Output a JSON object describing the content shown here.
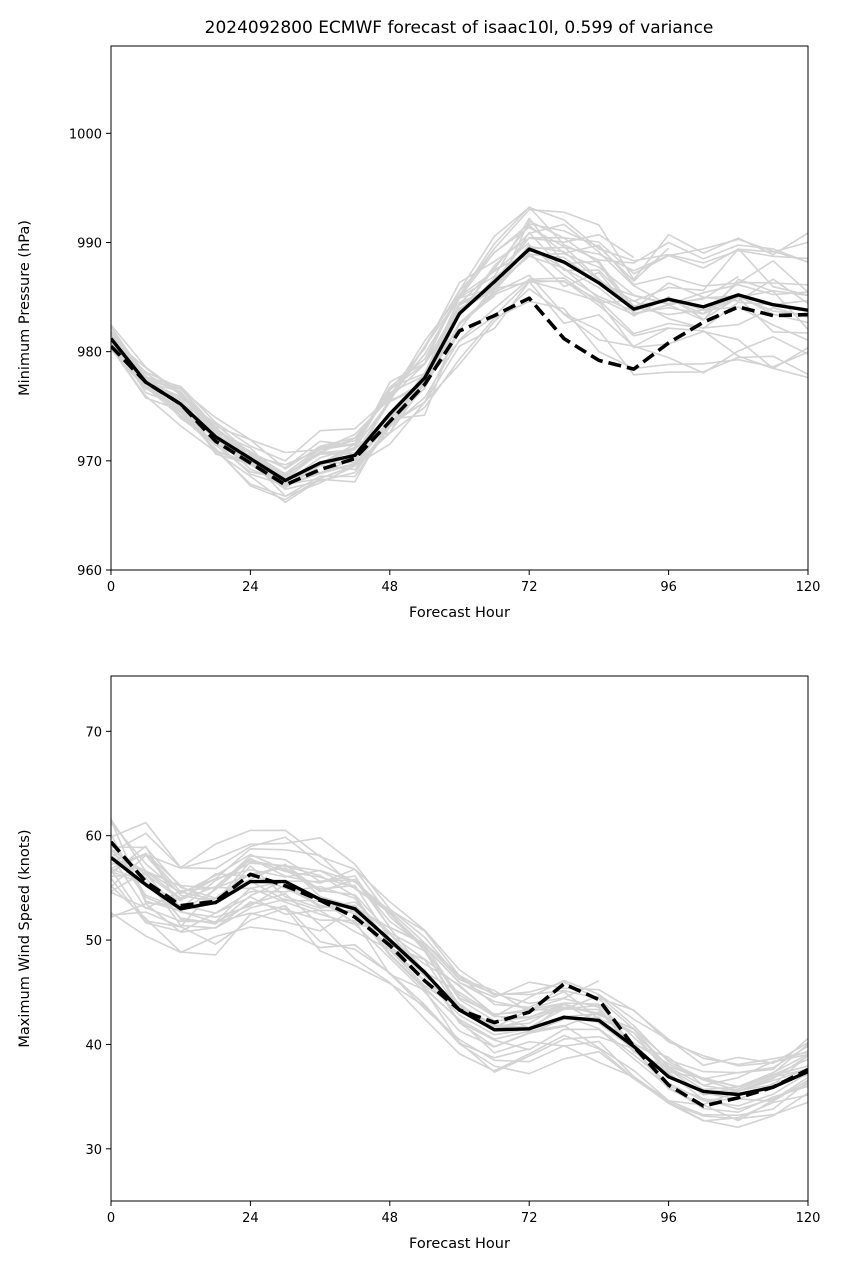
{
  "title": "2024092800 ECMWF forecast of isaac10l, 0.599 of variance",
  "chart_data": [
    {
      "type": "line",
      "xlabel": "Forecast Hour",
      "ylabel": "Minimum Pressure (hPa)",
      "xlim": [
        0,
        120
      ],
      "ylim": [
        960,
        1008
      ],
      "xticks": [
        0,
        24,
        48,
        72,
        96,
        120
      ],
      "yticks": [
        960,
        970,
        980,
        990,
        1000
      ],
      "x": [
        0,
        6,
        12,
        18,
        24,
        30,
        36,
        42,
        48,
        54,
        60,
        66,
        72,
        78,
        84,
        90,
        96,
        102,
        108,
        114,
        120
      ],
      "series": [
        {
          "style": "solid",
          "values": [
            981.2,
            977.2,
            975.2,
            972.2,
            970.2,
            968.2,
            969.8,
            970.5,
            974.3,
            977.6,
            983.5,
            986.4,
            989.4,
            988.2,
            986.3,
            983.9,
            984.8,
            984.1,
            985.2,
            984.3,
            983.8
          ]
        },
        {
          "style": "dashed",
          "values": [
            980.5,
            977.2,
            975.2,
            971.8,
            969.8,
            967.8,
            969.2,
            970.2,
            973.6,
            977.0,
            981.9,
            983.3,
            984.9,
            981.2,
            979.2,
            978.4,
            980.8,
            982.7,
            984.1,
            983.3,
            983.4
          ]
        }
      ],
      "ensemble_color": "#d3d3d3",
      "ensemble_members": 30
    },
    {
      "type": "line",
      "xlabel": "Forecast Hour",
      "ylabel": "Maximum Wind Speed (knots)",
      "xlim": [
        0,
        120
      ],
      "ylim": [
        25,
        75.3
      ],
      "xticks": [
        0,
        24,
        48,
        72,
        96,
        120
      ],
      "yticks": [
        30,
        40,
        50,
        60,
        70
      ],
      "x": [
        0,
        6,
        12,
        18,
        24,
        30,
        36,
        42,
        48,
        54,
        60,
        66,
        72,
        78,
        84,
        90,
        96,
        102,
        108,
        114,
        120
      ],
      "series": [
        {
          "style": "solid",
          "values": [
            57.9,
            55.3,
            53.0,
            53.6,
            55.6,
            55.6,
            53.9,
            53.0,
            50.0,
            46.9,
            43.3,
            41.4,
            41.5,
            42.6,
            42.3,
            39.8,
            36.9,
            35.5,
            35.2,
            35.9,
            37.4
          ]
        },
        {
          "style": "dashed",
          "values": [
            59.4,
            55.6,
            53.3,
            53.7,
            56.3,
            55.2,
            53.8,
            52.2,
            49.5,
            46.1,
            43.3,
            42.1,
            43.1,
            45.8,
            44.3,
            39.8,
            36.1,
            34.1,
            34.9,
            35.9,
            37.6
          ]
        }
      ],
      "ensemble_color": "#d3d3d3",
      "ensemble_members": 30
    }
  ]
}
